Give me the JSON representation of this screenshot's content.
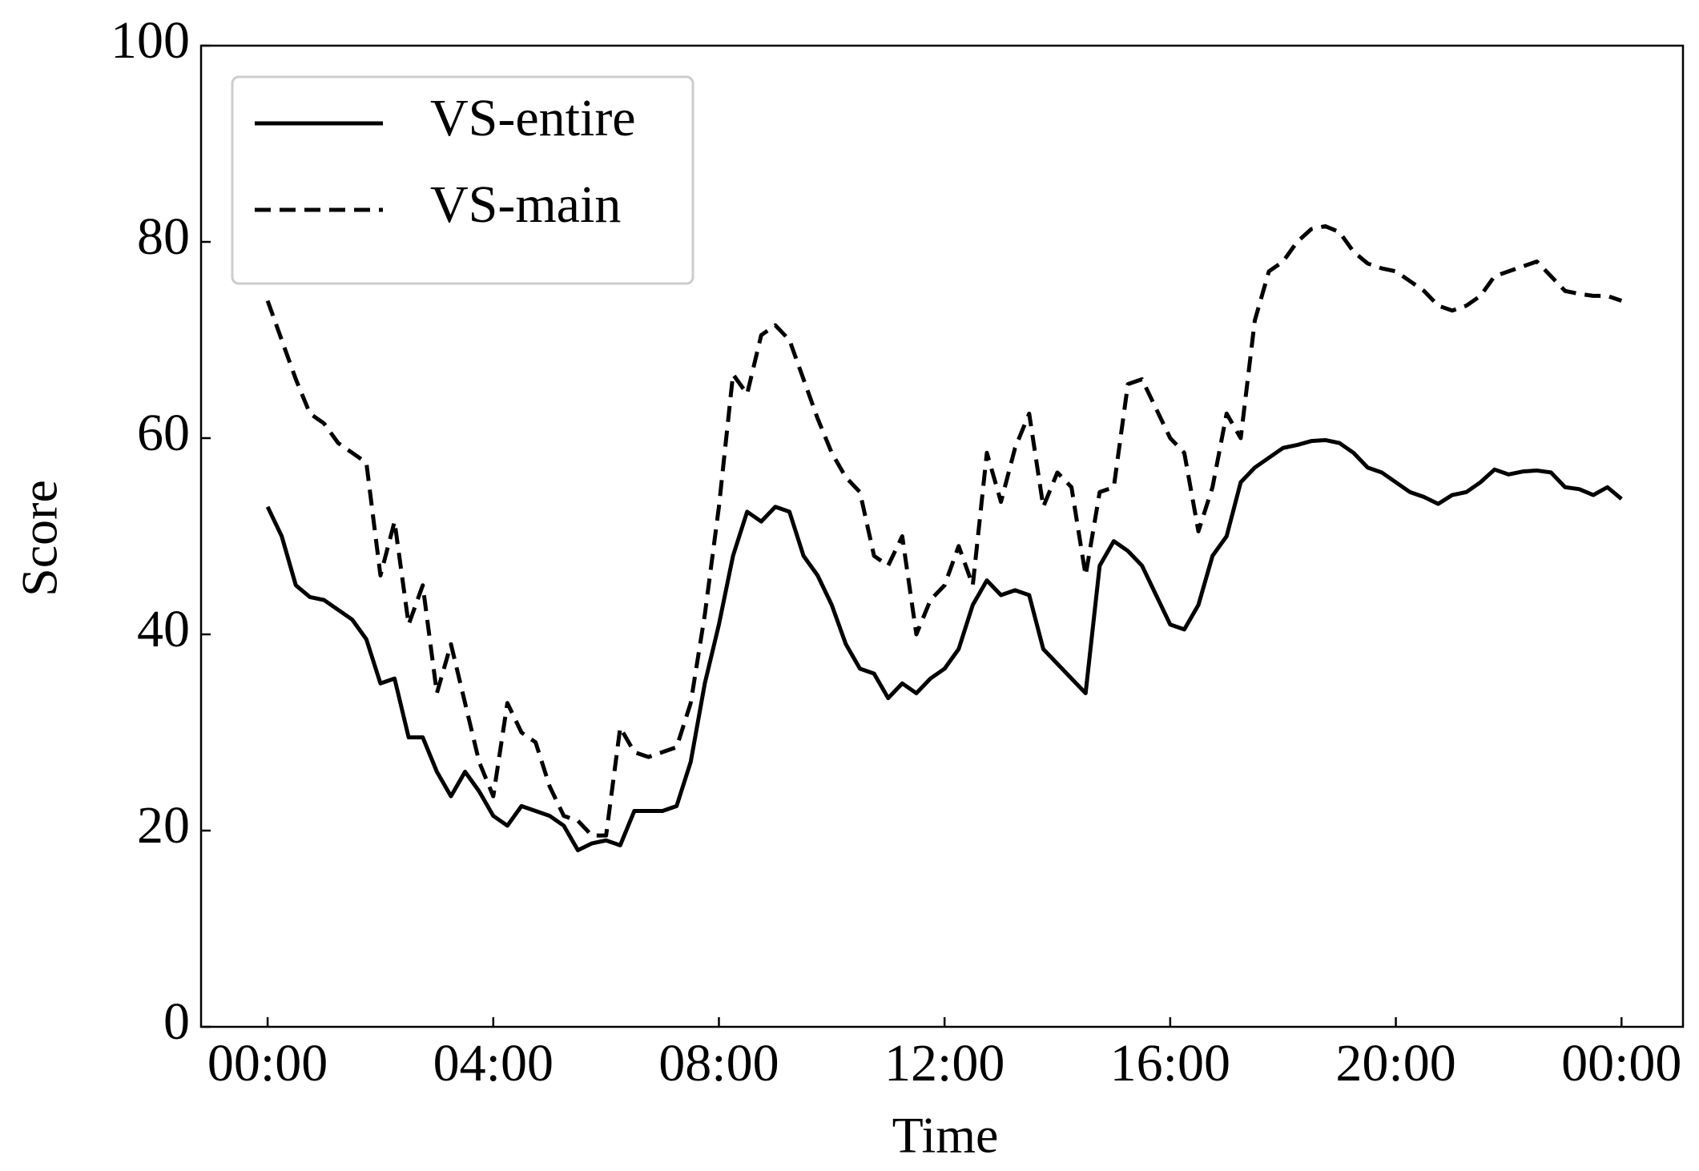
{
  "chart_data": {
    "type": "line",
    "xlabel": "Time",
    "ylabel": "Score",
    "x": [
      0,
      0.25,
      0.5,
      0.75,
      1,
      1.25,
      1.5,
      1.75,
      2,
      2.25,
      2.5,
      2.75,
      3,
      3.25,
      3.5,
      3.75,
      4,
      4.25,
      4.5,
      4.75,
      5,
      5.25,
      5.5,
      5.75,
      6,
      6.25,
      6.5,
      6.75,
      7,
      7.25,
      7.5,
      7.75,
      8,
      8.25,
      8.5,
      8.75,
      9,
      9.25,
      9.5,
      9.75,
      10,
      10.25,
      10.5,
      10.75,
      11,
      11.25,
      11.5,
      11.75,
      12,
      12.25,
      12.5,
      12.75,
      13,
      13.25,
      13.5,
      13.75,
      14,
      14.25,
      14.5,
      14.75,
      15,
      15.25,
      15.5,
      15.75,
      16,
      16.25,
      16.5,
      16.75,
      17,
      17.25,
      17.5,
      17.75,
      18,
      18.25,
      18.5,
      18.75,
      19,
      19.25,
      19.5,
      19.75,
      20,
      20.25,
      20.5,
      20.75,
      21,
      21.25,
      21.5,
      21.75,
      22,
      22.25,
      22.5,
      22.75,
      23,
      23.25,
      23.5,
      23.75,
      24
    ],
    "series": [
      {
        "name": "VS-entire",
        "color": "#000000",
        "linestyle": "solid",
        "values": [
          53,
          50,
          45,
          43.8,
          43.5,
          42.5,
          41.5,
          39.5,
          35,
          35.5,
          29.5,
          29.5,
          26,
          23.5,
          26,
          24,
          21.5,
          20.5,
          22.5,
          22,
          21.5,
          20.5,
          18,
          18.7,
          19,
          18.5,
          22,
          22,
          22,
          22.5,
          27,
          35,
          41,
          48,
          52.5,
          51.5,
          53,
          52.5,
          48,
          46,
          43,
          39,
          36.5,
          36,
          33.5,
          35,
          34,
          35.5,
          36.5,
          38.5,
          43,
          45.5,
          44,
          44.5,
          44,
          38.5,
          37,
          35.5,
          34,
          47,
          49.5,
          48.5,
          47,
          44,
          41,
          40.5,
          43,
          48,
          50,
          55.5,
          57,
          58,
          59,
          59.3,
          59.7,
          59.8,
          59.5,
          58.5,
          57,
          56.5,
          55.5,
          54.5,
          54,
          53.3,
          54.2,
          54.5,
          55.5,
          56.8,
          56.3,
          56.6,
          56.7,
          56.5,
          55,
          54.8,
          54.2,
          55,
          53.8
        ]
      },
      {
        "name": "VS-main",
        "color": "#000000",
        "linestyle": "dashed",
        "values": [
          74,
          70,
          66,
          62.5,
          61.5,
          59.5,
          58.5,
          57.5,
          46,
          51.5,
          41,
          45,
          34,
          39,
          33,
          27,
          23.5,
          33,
          30,
          29,
          24.5,
          21.5,
          21,
          19.5,
          19.5,
          30.5,
          28,
          27.5,
          28,
          28.5,
          33,
          42,
          53,
          66.5,
          64.5,
          70.5,
          71.5,
          70,
          66,
          62,
          58.5,
          56,
          54.5,
          48,
          47,
          50,
          40,
          43.5,
          45,
          49,
          45,
          58.5,
          53.5,
          59,
          62.5,
          53,
          56.5,
          55,
          46,
          54.5,
          55,
          65.5,
          66,
          63,
          60,
          58.5,
          50.5,
          55,
          62.5,
          60,
          72,
          77,
          78,
          80,
          81.3,
          81.6,
          81,
          79,
          77.8,
          77.3,
          77,
          76,
          75,
          73.5,
          73,
          73.5,
          74.5,
          76.5,
          77,
          77.5,
          78,
          76.5,
          75,
          74.7,
          74.5,
          74.5,
          74
        ]
      }
    ],
    "xlim": [
      -1.18,
      25.09
    ],
    "xticks": [
      {
        "value": 0,
        "label": "00:00"
      },
      {
        "value": 4,
        "label": "04:00"
      },
      {
        "value": 8,
        "label": "08:00"
      },
      {
        "value": 12,
        "label": "12:00"
      },
      {
        "value": 16,
        "label": "16:00"
      },
      {
        "value": 20,
        "label": "20:00"
      },
      {
        "value": 24,
        "label": "00:00"
      }
    ],
    "ylim": [
      0,
      100
    ],
    "yticks": [
      0,
      20,
      40,
      60,
      80,
      100
    ],
    "grid": false,
    "legend": "upper left"
  }
}
